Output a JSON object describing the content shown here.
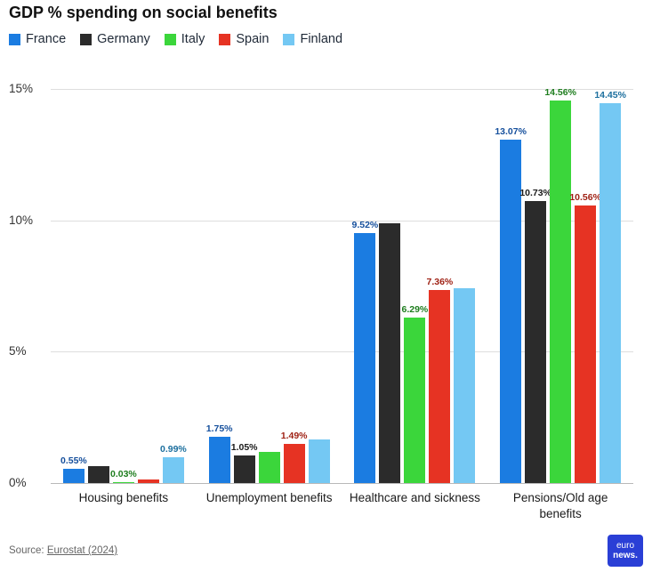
{
  "title": "GDP % spending on social benefits",
  "chart_data": {
    "type": "bar",
    "title": "GDP % spending on social benefits",
    "categories": [
      "Housing benefits",
      "Unemployment benefits",
      "Healthcare and sickness",
      "Pensions/Old age benefits"
    ],
    "series": [
      {
        "name": "France",
        "color": "#1b7ce1",
        "label_color": "#154f9c",
        "values": [
          0.55,
          1.75,
          9.52,
          13.07
        ],
        "labels": [
          "0.55%",
          "1.75%",
          "9.52%",
          "13.07%"
        ]
      },
      {
        "name": "Germany",
        "color": "#2b2b2b",
        "label_color": "#1a1a1a",
        "values": [
          0.63,
          1.05,
          9.9,
          10.73
        ],
        "labels": [
          "",
          "1.05%",
          "",
          "10.73%"
        ]
      },
      {
        "name": "Italy",
        "color": "#3bd63b",
        "label_color": "#1e7d1e",
        "values": [
          0.03,
          1.2,
          6.29,
          14.56
        ],
        "labels": [
          "0.03%",
          "",
          "6.29%",
          "14.56%"
        ]
      },
      {
        "name": "Spain",
        "color": "#e63323",
        "label_color": "#9e1f12",
        "values": [
          0.13,
          1.49,
          7.36,
          10.56
        ],
        "labels": [
          "",
          "1.49%",
          "7.36%",
          "10.56%"
        ]
      },
      {
        "name": "Finland",
        "color": "#74c8f3",
        "label_color": "#1c6f9e",
        "values": [
          0.99,
          1.65,
          7.4,
          14.45
        ],
        "labels": [
          "0.99%",
          "",
          "",
          "14.45%"
        ]
      }
    ],
    "ylim": [
      0,
      15
    ],
    "yticks": [
      {
        "value": 0,
        "label": "0%"
      },
      {
        "value": 5,
        "label": "5%"
      },
      {
        "value": 10,
        "label": "10%"
      },
      {
        "value": 15,
        "label": "15%"
      }
    ],
    "grid": "horizontal",
    "legend_position": "top"
  },
  "footer": {
    "source_prefix": "Source: ",
    "source_link": "Eurostat (2024)"
  },
  "logo": {
    "line1": "euro",
    "line2": "news.",
    "bg": "#2a3fd6"
  }
}
